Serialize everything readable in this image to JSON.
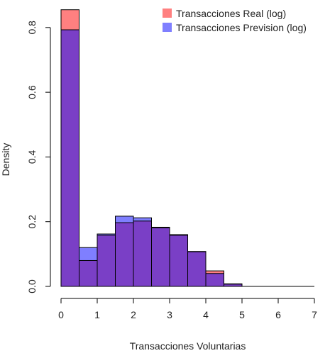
{
  "chart_data": {
    "type": "histogram",
    "title": "",
    "xlabel": "Transacciones Voluntarias",
    "ylabel": "Density",
    "xlim": [
      0,
      7
    ],
    "ylim": [
      0,
      0.85
    ],
    "x_ticks": [
      0,
      1,
      2,
      3,
      4,
      5,
      6,
      7
    ],
    "y_ticks": [
      0.0,
      0.2,
      0.4,
      0.6,
      0.8
    ],
    "y_tick_labels": [
      "0.0",
      "0.2",
      "0.4",
      "0.6",
      "0.8"
    ],
    "bins": [
      [
        0,
        0.5
      ],
      [
        0.5,
        1
      ],
      [
        1,
        1.5
      ],
      [
        1.5,
        2
      ],
      [
        2,
        2.5
      ],
      [
        2.5,
        3
      ],
      [
        3,
        3.5
      ],
      [
        3.5,
        4
      ],
      [
        4,
        4.5
      ],
      [
        4.5,
        5
      ],
      [
        5,
        5.5
      ],
      [
        5.5,
        6
      ],
      [
        6,
        6.5
      ],
      [
        6.5,
        7
      ]
    ],
    "grid": false,
    "legend_position": "top-right",
    "series": [
      {
        "name": "Transacciones Real (log)",
        "color": "#ff8080",
        "values": [
          0.855,
          0.08,
          0.158,
          0.197,
          0.202,
          0.183,
          0.158,
          0.107,
          0.048,
          0.008,
          0.0,
          0.0,
          0.0,
          0.0
        ]
      },
      {
        "name": "Transacciones Prevision (log)",
        "color": "#7f7fff",
        "values": [
          0.793,
          0.12,
          0.162,
          0.217,
          0.212,
          0.181,
          0.16,
          0.108,
          0.04,
          0.007,
          0.0,
          0.0,
          0.0,
          0.0
        ]
      }
    ],
    "overlap_color": "#7a3fc6"
  }
}
